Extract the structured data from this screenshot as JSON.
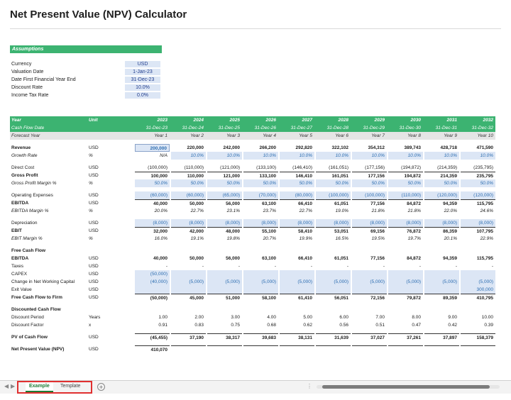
{
  "title": "Net Present Value (NPV) Calculator",
  "assumptions": {
    "header": "Assumptions",
    "rows": [
      {
        "label": "Currency",
        "value": "USD"
      },
      {
        "label": "Valuation Date",
        "value": "1-Jan-23"
      },
      {
        "label": "Date First Financial Year End",
        "value": "31-Dec-23"
      },
      {
        "label": "Discount Rate",
        "value": "10.0%"
      },
      {
        "label": "Income Tax Rate",
        "value": "0.0%"
      }
    ]
  },
  "table": {
    "header_year": {
      "label": "Year",
      "unit": "Unit",
      "values": [
        "2023",
        "2024",
        "2025",
        "2026",
        "2027",
        "2028",
        "2029",
        "2030",
        "2031",
        "2032"
      ]
    },
    "header_date": {
      "label": "Cash Flow Date",
      "values": [
        "31-Dec-23",
        "31-Dec-24",
        "31-Dec-25",
        "31-Dec-26",
        "31-Dec-27",
        "31-Dec-28",
        "31-Dec-29",
        "31-Dec-30",
        "31-Dec-31",
        "31-Dec-32"
      ]
    },
    "header_fy": {
      "label": "Forecast Year",
      "values": [
        "Year 1",
        "Year 2",
        "Year 3",
        "Year 4",
        "Year 5",
        "Year 6",
        "Year 7",
        "Year 8",
        "Year 9",
        "Year 10"
      ]
    },
    "rows": [
      {
        "label": "Revenue",
        "unit": "USD",
        "values": [
          "200,000",
          "220,000",
          "242,000",
          "266,200",
          "292,820",
          "322,102",
          "354,312",
          "389,743",
          "428,718",
          "471,590"
        ],
        "bold": true,
        "firstInput": true
      },
      {
        "label": "Growth Rate",
        "unit": "%",
        "values": [
          "N/A",
          "10.0%",
          "10.0%",
          "10.0%",
          "10.0%",
          "10.0%",
          "10.0%",
          "10.0%",
          "10.0%",
          "10.0%"
        ],
        "italic": true,
        "inputFrom": 1
      },
      {
        "gap": true
      },
      {
        "label": "Direct Cost",
        "unit": "USD",
        "values": [
          "(100,000)",
          "(110,000)",
          "(121,000)",
          "(133,100)",
          "(146,410)",
          "(161,051)",
          "(177,156)",
          "(194,872)",
          "(214,359)",
          "(235,795)"
        ]
      },
      {
        "label": "Gross Profit",
        "unit": "USD",
        "values": [
          "100,000",
          "110,000",
          "121,000",
          "133,100",
          "146,410",
          "161,051",
          "177,156",
          "194,872",
          "214,359",
          "235,795"
        ],
        "bold": true,
        "topline": true
      },
      {
        "label": "Gross Profit Margin %",
        "unit": "%",
        "values": [
          "50.0%",
          "50.0%",
          "50.0%",
          "50.0%",
          "50.0%",
          "50.0%",
          "50.0%",
          "50.0%",
          "50.0%",
          "50.0%"
        ],
        "italic": true,
        "inputFrom": 0
      },
      {
        "gap": true
      },
      {
        "label": "Operating Expenses",
        "unit": "USD",
        "values": [
          "(60,000)",
          "(60,000)",
          "(65,000)",
          "(70,000)",
          "(80,000)",
          "(100,000)",
          "(100,000)",
          "(110,000)",
          "(120,000)",
          "(120,000)"
        ],
        "inputFrom": 0
      },
      {
        "label": "EBITDA",
        "unit": "USD",
        "values": [
          "40,000",
          "50,000",
          "56,000",
          "63,100",
          "66,410",
          "61,051",
          "77,156",
          "84,872",
          "94,359",
          "115,795"
        ],
        "bold": true,
        "topline": true
      },
      {
        "label": "EBITDA Margin %",
        "unit": "%",
        "values": [
          "20.0%",
          "22.7%",
          "23.1%",
          "23.7%",
          "22.7%",
          "19.0%",
          "21.8%",
          "21.8%",
          "22.0%",
          "24.6%"
        ],
        "italic": true
      },
      {
        "gap": true
      },
      {
        "label": "Depreciation",
        "unit": "USD",
        "values": [
          "(8,000)",
          "(8,000)",
          "(8,000)",
          "(8,000)",
          "(8,000)",
          "(8,000)",
          "(8,000)",
          "(8,000)",
          "(8,000)",
          "(8,000)"
        ],
        "inputFrom": 0
      },
      {
        "label": "EBIT",
        "unit": "USD",
        "values": [
          "32,000",
          "42,000",
          "48,000",
          "55,100",
          "58,410",
          "53,051",
          "69,156",
          "76,872",
          "86,359",
          "107,795"
        ],
        "bold": true,
        "topline": true
      },
      {
        "label": "EBIT Margin %",
        "unit": "%",
        "values": [
          "16.0%",
          "19.1%",
          "19.8%",
          "20.7%",
          "19.9%",
          "16.5%",
          "19.5%",
          "19.7%",
          "20.1%",
          "22.9%"
        ],
        "italic": true
      },
      {
        "gap": true
      },
      {
        "label": "Free Cash Flow",
        "unit": "",
        "values": [
          "",
          "",
          "",
          "",
          "",
          "",
          "",
          "",
          "",
          ""
        ],
        "bold": true
      },
      {
        "label": "EBITDA",
        "unit": "USD",
        "values": [
          "40,000",
          "50,000",
          "56,000",
          "63,100",
          "66,410",
          "61,051",
          "77,156",
          "84,872",
          "94,359",
          "115,795"
        ],
        "bold": true
      },
      {
        "label": "Taxes",
        "unit": "USD",
        "values": [
          "-",
          "-",
          "-",
          "-",
          "-",
          "-",
          "-",
          "-",
          "-",
          "-"
        ]
      },
      {
        "label": "CAPEX",
        "unit": "USD",
        "values": [
          "(50,000)",
          "",
          "",
          "",
          "",
          "",
          "",
          "",
          "",
          ""
        ],
        "inputFrom": 0
      },
      {
        "label": "Change in Net Working Capital",
        "unit": "USD",
        "values": [
          "(40,000)",
          "(5,000)",
          "(5,000)",
          "(5,000)",
          "(5,000)",
          "(5,000)",
          "(5,000)",
          "(5,000)",
          "(5,000)",
          "(5,000)"
        ],
        "inputFrom": 0
      },
      {
        "label": "Exit Value",
        "unit": "USD",
        "values": [
          "",
          "",
          "",
          "",
          "",
          "",
          "",
          "",
          "",
          "300,000"
        ],
        "inputFrom": 0
      },
      {
        "label": "Free Cash Flow to Firm",
        "unit": "USD",
        "values": [
          "(50,000)",
          "45,000",
          "51,000",
          "58,100",
          "61,410",
          "56,051",
          "72,156",
          "79,872",
          "89,359",
          "410,795"
        ],
        "bold": true,
        "topline": true
      },
      {
        "gap": true
      },
      {
        "label": "Discounted Cash Flow",
        "unit": "",
        "values": [
          "",
          "",
          "",
          "",
          "",
          "",
          "",
          "",
          "",
          ""
        ],
        "bold": true
      },
      {
        "label": "Discount Period",
        "unit": "Years",
        "values": [
          "1.00",
          "2.00",
          "3.00",
          "4.00",
          "5.00",
          "6.00",
          "7.00",
          "8.00",
          "9.00",
          "10.00"
        ]
      },
      {
        "label": "Discount Factor",
        "unit": "x",
        "values": [
          "0.91",
          "0.83",
          "0.75",
          "0.68",
          "0.62",
          "0.56",
          "0.51",
          "0.47",
          "0.42",
          "0.39"
        ]
      },
      {
        "gap": true
      },
      {
        "label": "PV of Cash Flow",
        "unit": "USD",
        "values": [
          "(45,455)",
          "37,190",
          "38,317",
          "39,683",
          "38,131",
          "31,639",
          "37,027",
          "37,261",
          "37,897",
          "158,379"
        ],
        "bold": true,
        "topline": true
      },
      {
        "gap": true
      },
      {
        "label": "Net Present Value (NPV)",
        "unit": "USD",
        "values": [
          "410,070",
          "",
          "",
          "",
          "",
          "",
          "",
          "",
          "",
          ""
        ],
        "bold": true,
        "topline": true
      }
    ]
  },
  "tabs": {
    "active": "Example",
    "inactive": "Template",
    "add": "+"
  },
  "colors": {
    "green": "#3cb371",
    "input": "#dce6f5",
    "blue": "#2b6cb0"
  }
}
